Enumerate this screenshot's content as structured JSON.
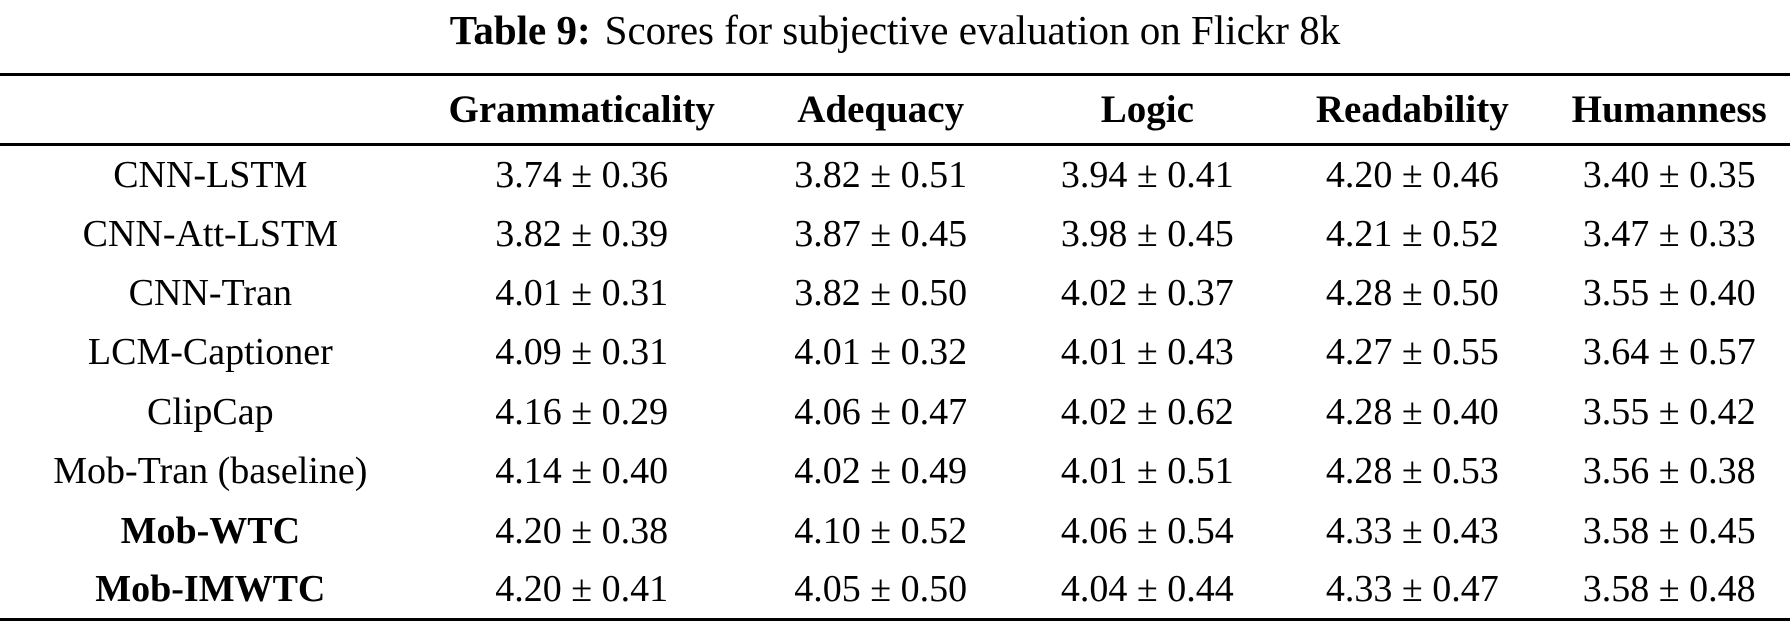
{
  "caption": {
    "label": "Table 9:",
    "text": "Scores for subjective evaluation on Flickr 8k"
  },
  "table": {
    "columns": [
      "",
      "Grammaticality",
      "Adequacy",
      "Logic",
      "Readability",
      "Humanness"
    ],
    "rows": [
      {
        "label": "CNN-LSTM",
        "values": [
          "3.74 ± 0.36",
          "3.82 ± 0.51",
          "3.94 ± 0.41",
          "4.20 ± 0.46",
          "3.40 ± 0.35"
        ]
      },
      {
        "label": "CNN-Att-LSTM",
        "values": [
          "3.82 ± 0.39",
          "3.87 ± 0.45",
          "3.98 ± 0.45",
          "4.21 ± 0.52",
          "3.47 ± 0.33"
        ]
      },
      {
        "label": "CNN-Tran",
        "values": [
          "4.01 ± 0.31",
          "3.82 ± 0.50",
          "4.02 ± 0.37",
          "4.28 ± 0.50",
          "3.55 ± 0.40"
        ]
      },
      {
        "label": "LCM-Captioner",
        "values": [
          "4.09 ± 0.31",
          "4.01 ± 0.32",
          "4.01 ± 0.43",
          "4.27 ± 0.55",
          "3.64 ± 0.57"
        ]
      },
      {
        "label": "ClipCap",
        "values": [
          "4.16 ± 0.29",
          "4.06 ± 0.47",
          "4.02 ± 0.62",
          "4.28 ± 0.40",
          "3.55 ± 0.42"
        ]
      },
      {
        "label": "Mob-Tran (baseline)",
        "values": [
          "4.14 ± 0.40",
          "4.02 ± 0.49",
          "4.01 ± 0.51",
          "4.28 ± 0.53",
          "3.56 ± 0.38"
        ]
      },
      {
        "label": "Mob-WTC",
        "values": [
          "4.20 ± 0.38",
          "4.10 ± 0.52",
          "4.06 ± 0.54",
          "4.33 ± 0.43",
          "3.58 ± 0.45"
        ]
      },
      {
        "label": "Mob-IMWTC",
        "values": [
          "4.20 ± 0.41",
          "4.05 ± 0.50",
          "4.04 ± 0.44",
          "4.33 ± 0.47",
          "3.58 ± 0.48"
        ]
      }
    ]
  }
}
